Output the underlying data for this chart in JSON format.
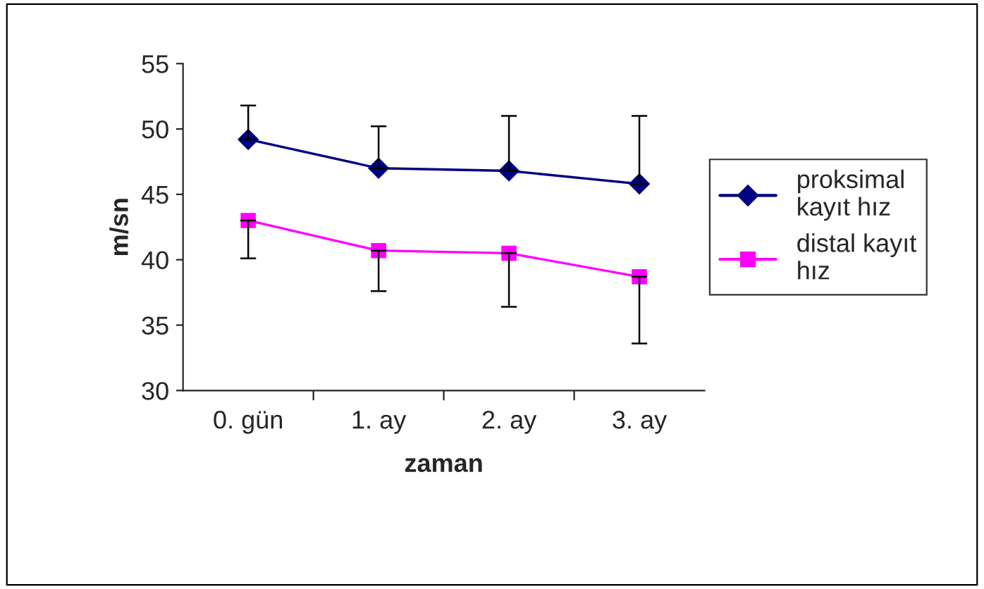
{
  "chart_data": {
    "type": "line",
    "xlabel": "zaman",
    "ylabel": "m/sn",
    "categories": [
      "0. gün",
      "1. ay",
      "2. ay",
      "3. ay"
    ],
    "series": [
      {
        "name": "proksimal\nkayıt hız",
        "color": "#000080",
        "marker": "diamond",
        "values": [
          49.2,
          47.0,
          46.8,
          45.8
        ],
        "errors": [
          [
            49.2,
            51.8
          ],
          [
            47.0,
            50.2
          ],
          [
            46.8,
            51.0
          ],
          [
            45.8,
            51.0
          ]
        ]
      },
      {
        "name": "distal kayıt\nhız",
        "color": "#ff00ff",
        "marker": "square",
        "values": [
          43.0,
          40.7,
          40.5,
          38.7
        ],
        "errors": [
          [
            40.1,
            43.0
          ],
          [
            37.6,
            40.7
          ],
          [
            36.4,
            40.5
          ],
          [
            33.6,
            38.7
          ]
        ]
      }
    ],
    "ylim": [
      30,
      55
    ],
    "yticks": [
      30,
      35,
      40,
      45,
      50,
      55
    ],
    "grid": false,
    "legend": "right",
    "line_style": "solid"
  }
}
